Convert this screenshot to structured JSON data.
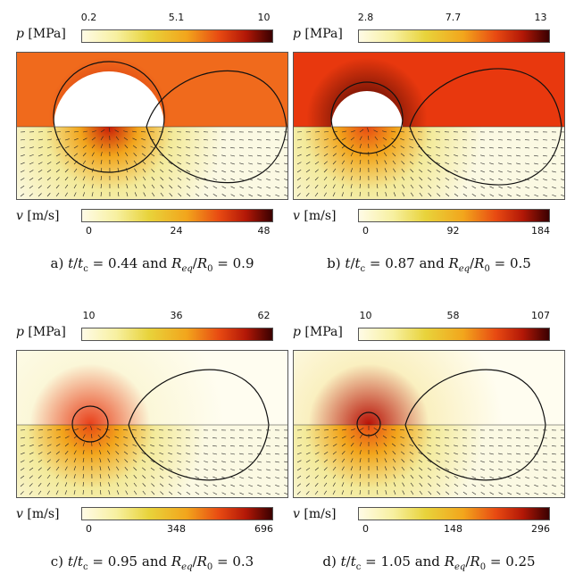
{
  "panels": [
    {
      "id": "a",
      "pressure_bar": {
        "symbol": "p",
        "unit": "[MPa]",
        "ticks": [
          "0.2",
          "5.1",
          "10"
        ]
      },
      "velocity_bar": {
        "symbol": "v",
        "unit": "[m/s]",
        "ticks": [
          "0",
          "24",
          "48"
        ]
      },
      "caption": {
        "prefix": "a)",
        "t_ratio": "0.44",
        "conj": "and",
        "r_ratio": "0.9"
      },
      "colors": {
        "bg": "#f06a1c",
        "hot": "#c81a06"
      }
    },
    {
      "id": "b",
      "pressure_bar": {
        "symbol": "p",
        "unit": "[MPa]",
        "ticks": [
          "2.8",
          "7.7",
          "13"
        ]
      },
      "velocity_bar": {
        "symbol": "v",
        "unit": "[m/s]",
        "ticks": [
          "0",
          "92",
          "184"
        ]
      },
      "caption": {
        "prefix": "b)",
        "t_ratio": "0.87",
        "conj": "and",
        "r_ratio": "0.5"
      },
      "colors": {
        "bg": "#e8380e",
        "hot": "#3a0000"
      }
    },
    {
      "id": "c",
      "pressure_bar": {
        "symbol": "p",
        "unit": "[MPa]",
        "ticks": [
          "10",
          "36",
          "62"
        ]
      },
      "velocity_bar": {
        "symbol": "v",
        "unit": "[m/s]",
        "ticks": [
          "0",
          "348",
          "696"
        ]
      },
      "caption": {
        "prefix": "c)",
        "t_ratio": "0.95",
        "conj": "and",
        "r_ratio": "0.3"
      },
      "colors": {
        "bg": "#fbf7d8",
        "hot": "#e8401a"
      }
    },
    {
      "id": "d",
      "pressure_bar": {
        "symbol": "p",
        "unit": "[MPa]",
        "ticks": [
          "10",
          "58",
          "107"
        ]
      },
      "velocity_bar": {
        "symbol": "v",
        "unit": "[m/s]",
        "ticks": [
          "0",
          "148",
          "296"
        ]
      },
      "caption": {
        "prefix": "d)",
        "t_ratio": "1.05",
        "conj": "and",
        "r_ratio": "0.25"
      },
      "colors": {
        "bg": "#faf0c0",
        "hot": "#b81206"
      }
    }
  ],
  "symbols": {
    "t": "t",
    "tc": "t",
    "tc_sub": "c",
    "req": "R",
    "req_sub": "eq",
    "r0": "R",
    "r0_sub": "0",
    "eq": "="
  }
}
